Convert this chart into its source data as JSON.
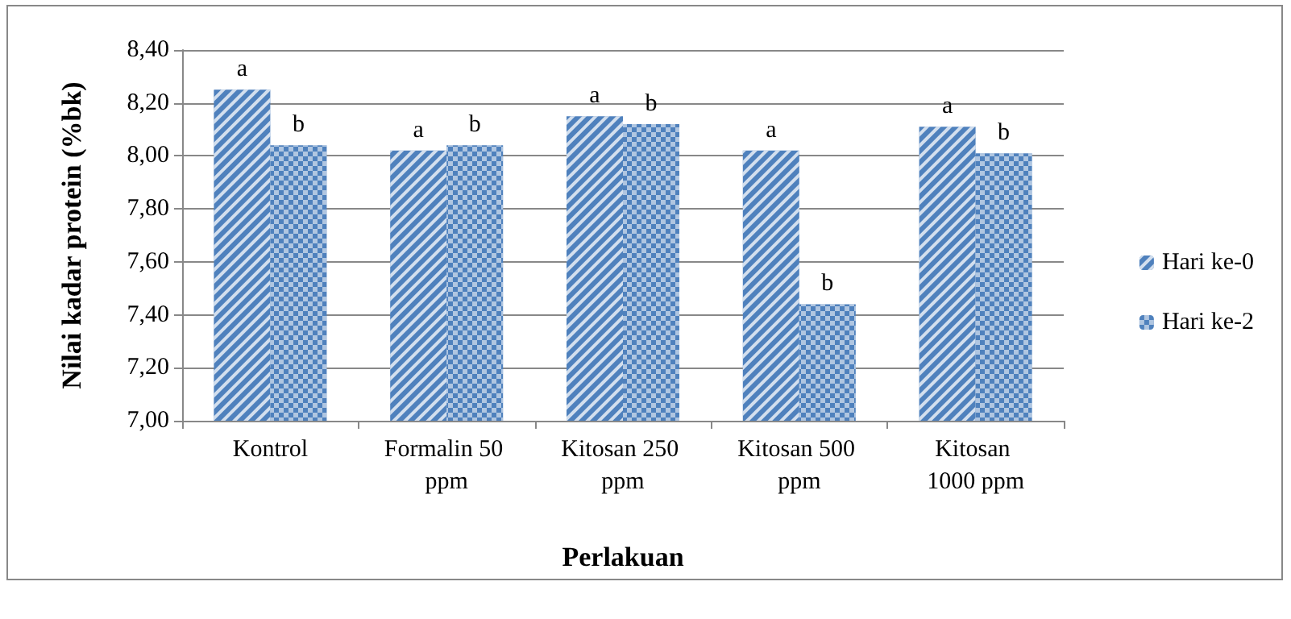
{
  "chart_data": {
    "type": "bar",
    "xlabel": "Perlakuan",
    "ylabel": "Nilai kadar protein (%bk)",
    "categories": [
      "Kontrol",
      "Formalin 50 ppm",
      "Kitosan 250 ppm",
      "Kitosan 500 ppm",
      "Kitosan 1000 ppm"
    ],
    "series": [
      {
        "name": "Hari ke-0",
        "color": "#4f81bd",
        "values": [
          8.25,
          8.02,
          8.15,
          8.02,
          8.11
        ],
        "value_labels": [
          "a",
          "a",
          "a",
          "a",
          "a"
        ]
      },
      {
        "name": "Hari ke-2",
        "color": "#4f81bd",
        "values": [
          8.04,
          8.04,
          8.12,
          7.44,
          8.01
        ],
        "value_labels": [
          "b",
          "b",
          "b",
          "b",
          "b"
        ]
      }
    ],
    "ylim": [
      7.0,
      8.4
    ],
    "yticks": [
      {
        "value": 7.0,
        "label": "7,00"
      },
      {
        "value": 7.2,
        "label": "7,20"
      },
      {
        "value": 7.4,
        "label": "7,40"
      },
      {
        "value": 7.6,
        "label": "7,60"
      },
      {
        "value": 7.8,
        "label": "7,80"
      },
      {
        "value": 8.0,
        "label": "8,00"
      },
      {
        "value": 8.2,
        "label": "8,20"
      },
      {
        "value": 8.4,
        "label": "8,40"
      }
    ],
    "grid": "y",
    "legend": "right"
  }
}
